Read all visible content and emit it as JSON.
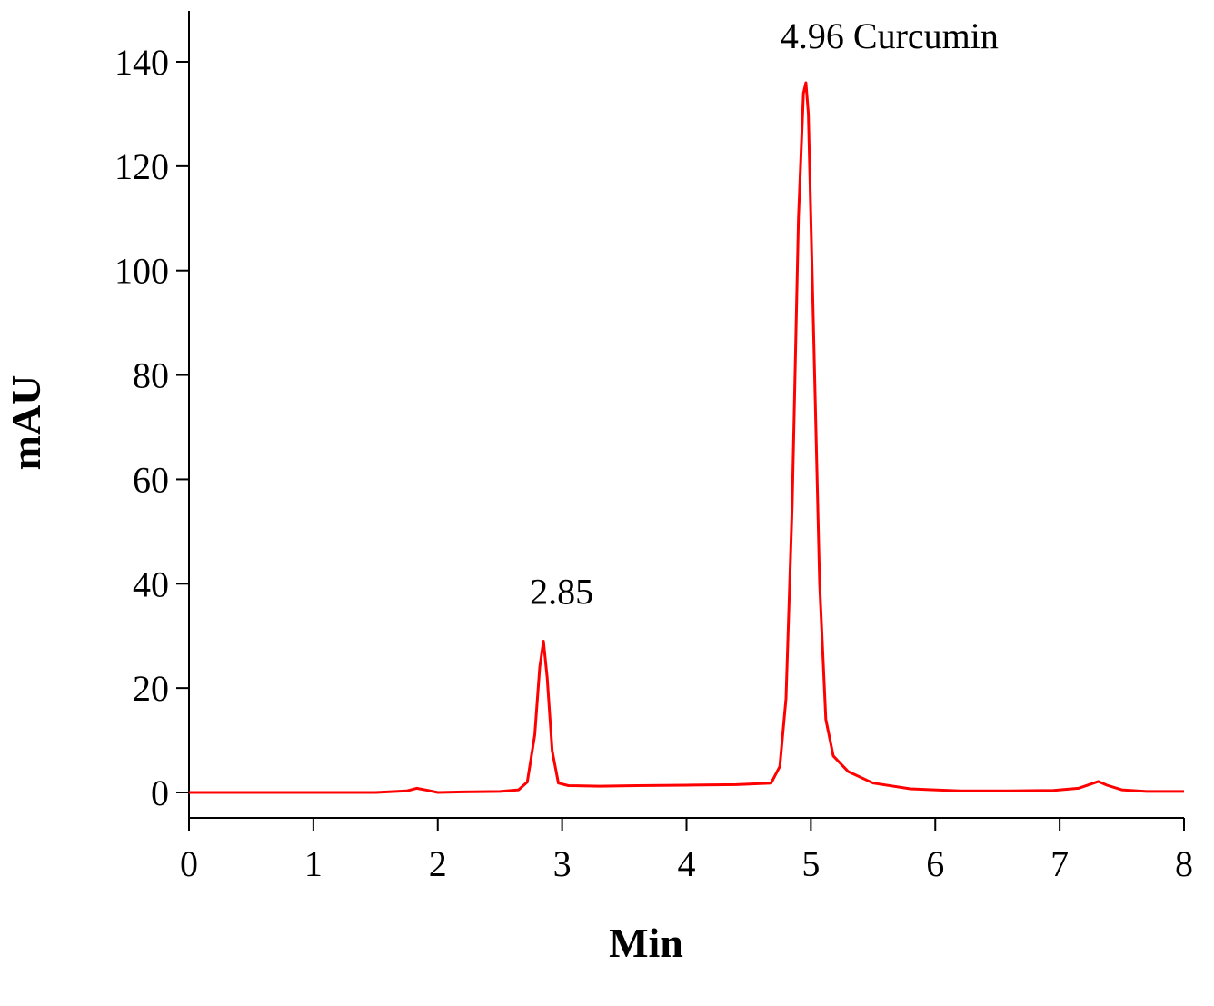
{
  "chart_data": {
    "type": "line",
    "xlabel": "Min",
    "ylabel": "mAU",
    "xlim": [
      0,
      8
    ],
    "ylim": [
      -5,
      150
    ],
    "x_ticks": [
      0,
      1,
      2,
      3,
      4,
      5,
      6,
      7,
      8
    ],
    "x_tick_labels": [
      "0",
      "1",
      "2",
      "3",
      "4",
      "5",
      "6",
      "7",
      "8"
    ],
    "y_ticks": [
      0,
      20,
      40,
      60,
      80,
      100,
      120,
      140
    ],
    "y_tick_labels": [
      "0",
      "20",
      "40",
      "60",
      "80",
      "100",
      "120",
      "140"
    ],
    "grid": false,
    "series": [
      {
        "color": "#ff0000",
        "x": [
          0,
          0.5,
          1.0,
          1.5,
          1.75,
          1.83,
          1.92,
          2.0,
          2.2,
          2.5,
          2.65,
          2.72,
          2.78,
          2.82,
          2.85,
          2.88,
          2.92,
          2.97,
          3.05,
          3.3,
          3.6,
          4.0,
          4.4,
          4.68,
          4.75,
          4.8,
          4.85,
          4.9,
          4.94,
          4.96,
          4.98,
          5.02,
          5.07,
          5.12,
          5.18,
          5.3,
          5.5,
          5.8,
          6.2,
          6.6,
          6.95,
          7.15,
          7.25,
          7.31,
          7.38,
          7.5,
          7.7,
          8.0
        ],
        "y": [
          0,
          0,
          0,
          0,
          0.3,
          0.8,
          0.4,
          0,
          0.1,
          0.2,
          0.5,
          2,
          11,
          24,
          29,
          22,
          8,
          1.8,
          1.3,
          1.2,
          1.3,
          1.4,
          1.5,
          1.8,
          5,
          18,
          55,
          110,
          134,
          136,
          130,
          90,
          40,
          14,
          7,
          4,
          1.8,
          0.7,
          0.3,
          0.3,
          0.4,
          0.8,
          1.6,
          2.1,
          1.4,
          0.5,
          0.2,
          0.2
        ]
      }
    ],
    "annotations": [
      {
        "text": "2.85",
        "x": 2.85,
        "y": 29
      },
      {
        "text": "4.96 Curcumin",
        "x": 4.96,
        "y": 136
      }
    ]
  }
}
